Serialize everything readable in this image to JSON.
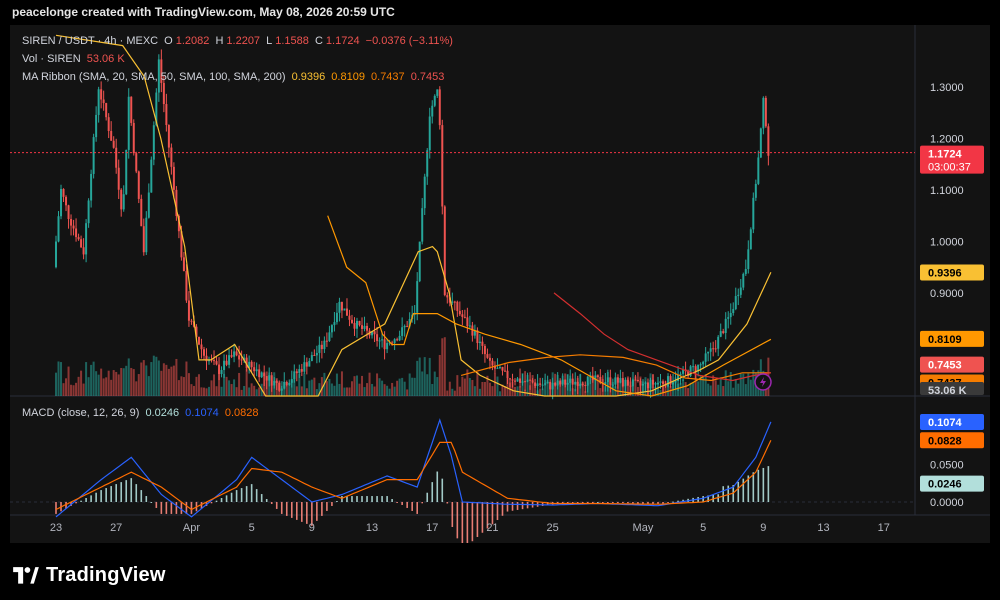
{
  "credit": "peacelonge created with TradingView.com, May 08, 2026 20:59 UTC",
  "brand": "TradingView",
  "colors": {
    "up": "#26a69a",
    "down": "#ef5350",
    "background": "#131313",
    "sma20": "#f9c033",
    "sma50": "#ff9800",
    "sma100": "#f57c00",
    "sma200": "#d32f2f",
    "macd": "#2962ff",
    "signal": "#ff6d00",
    "lastPrice": "#f23645"
  },
  "legend": {
    "symbol": "SIREN / USDT · 4h · MEXC",
    "o_label": "O",
    "o_value": "1.2082",
    "h_label": "H",
    "h_value": "1.2207",
    "l_label": "L",
    "l_value": "1.1588",
    "c_label": "C",
    "c_value": "1.1724",
    "change": "−0.0376 (−3.11%)",
    "vol_label": "Vol · SIREN",
    "vol_value": "53.06 K",
    "ma_label": "MA Ribbon (SMA, 20, SMA, 50, SMA, 100, SMA, 200)",
    "ma_values": [
      "0.9396",
      "0.8109",
      "0.7437",
      "0.7453"
    ],
    "macd_label": "MACD (close, 12, 26, 9)",
    "macd_values": [
      "0.0246",
      "0.1074",
      "0.0828"
    ]
  },
  "chart_data": [
    {
      "type": "candlestick",
      "title": "SIREN / USDT · 4h · MEXC",
      "price_axis": [
        "1.3000",
        "1.2000",
        "1.1000",
        "1.0000",
        "0.9000"
      ],
      "price_range": [
        0.7,
        1.42
      ],
      "last_price": "1.1724",
      "countdown": "03:00:37",
      "ma_badges": {
        "sma20": "0.9396",
        "sma50": "0.8109",
        "sma100": "0.7437",
        "sma200": "0.7453"
      },
      "volume_badge": "53.06 K",
      "x_ticks": [
        "23",
        "27",
        "Apr",
        "5",
        "9",
        "13",
        "17",
        "21",
        "25",
        "May",
        "5",
        "9",
        "13",
        "17"
      ],
      "x_tick_dates": [
        "Mar 23",
        "Mar 27",
        "Apr 1",
        "Apr 5",
        "Apr 9",
        "Apr 13",
        "Apr 17",
        "Apr 21",
        "Apr 25",
        "May 1",
        "May 5",
        "May 9",
        "May 13",
        "May 17"
      ],
      "sma_series": {
        "sma20": [
          [
            0,
            1.4
          ],
          [
            28,
            1.38
          ],
          [
            37,
            1.32
          ],
          [
            44,
            1.2
          ],
          [
            54,
            0.99
          ],
          [
            60,
            0.77
          ],
          [
            65,
            0.77
          ],
          [
            75,
            0.8
          ],
          [
            88,
            0.66
          ],
          [
            102,
            0.56
          ],
          [
            110,
            0.68
          ],
          [
            120,
            0.79
          ],
          [
            138,
            0.84
          ],
          [
            152,
            0.98
          ],
          [
            158,
            0.99
          ],
          [
            160,
            0.98
          ],
          [
            165,
            0.9
          ],
          [
            170,
            0.77
          ],
          [
            178,
            0.74
          ],
          [
            192,
            0.71
          ],
          [
            205,
            0.68
          ],
          [
            222,
            0.66
          ],
          [
            235,
            0.69
          ],
          [
            250,
            0.71
          ],
          [
            262,
            0.735
          ],
          [
            270,
            0.75
          ],
          [
            278,
            0.77
          ],
          [
            290,
            0.84
          ],
          [
            300,
            0.94
          ]
        ],
        "sma50": [
          [
            114,
            1.05
          ],
          [
            122,
            0.95
          ],
          [
            130,
            0.92
          ],
          [
            137,
            0.82
          ],
          [
            141,
            0.8
          ],
          [
            146,
            0.8
          ],
          [
            150,
            0.86
          ],
          [
            160,
            0.86
          ],
          [
            168,
            0.84
          ],
          [
            180,
            0.82
          ],
          [
            195,
            0.8
          ],
          [
            212,
            0.77
          ],
          [
            235,
            0.71
          ],
          [
            250,
            0.7
          ],
          [
            265,
            0.72
          ],
          [
            280,
            0.76
          ],
          [
            300,
            0.81
          ]
        ],
        "sma100": [
          [
            170,
            0.74
          ],
          [
            190,
            0.765
          ],
          [
            206,
            0.775
          ],
          [
            220,
            0.78
          ],
          [
            238,
            0.775
          ],
          [
            252,
            0.76
          ],
          [
            264,
            0.735
          ],
          [
            275,
            0.73
          ],
          [
            288,
            0.745
          ],
          [
            300,
            0.745
          ]
        ],
        "sma200": [
          [
            209,
            0.9
          ],
          [
            220,
            0.86
          ],
          [
            230,
            0.82
          ],
          [
            240,
            0.79
          ],
          [
            252,
            0.77
          ],
          [
            270,
            0.74
          ],
          [
            284,
            0.73
          ],
          [
            293,
            0.74
          ],
          [
            300,
            0.745
          ]
        ]
      },
      "candle_notes": "Daily-ish 4h candles from Mar 23 to May 8, sharp spikes near Mar 24–28 and Apr 16–17, long consolidation then breakout to ~1.30 on May 8."
    },
    {
      "type": "macd",
      "title": "MACD (close, 12, 26, 9)",
      "axis": [
        "0.0500",
        "0.0000"
      ],
      "histogram": 0.0246,
      "macd": 0.1074,
      "signal": 0.0828
    }
  ]
}
